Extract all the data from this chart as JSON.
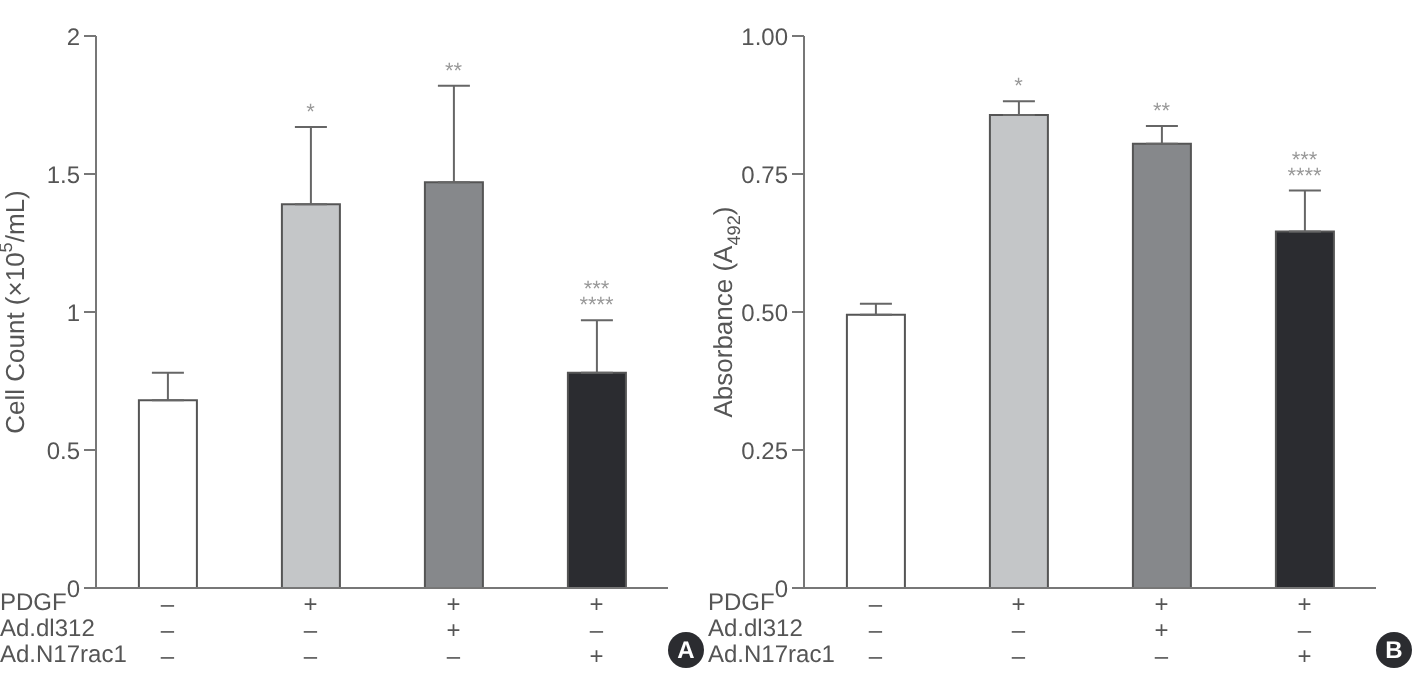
{
  "chart_data": [
    {
      "type": "bar",
      "ylabel": "Cell Count (×10$^{5}$/mL)",
      "categories": [
        "–\n–\n–",
        "+\n–\n–",
        "+\n+\n–",
        "+\n–\n+"
      ],
      "values": [
        0.68,
        1.39,
        1.47,
        0.78
      ],
      "colors": [
        "#ffffff",
        "#c4c6c8",
        "#86888b",
        "#2b2c30"
      ],
      "errors": [
        [
          0.68,
          0.78
        ],
        [
          1.39,
          1.67
        ],
        [
          1.47,
          1.82
        ],
        [
          0.78,
          0.97
        ]
      ],
      "ylim": [
        0,
        2
      ],
      "yticks": [
        0,
        0.5,
        1,
        1.5,
        2
      ],
      "grid": false,
      "legend": false,
      "annotations": [
        "PDGF",
        "Ad.dl312",
        "Ad.N17rac1",
        "A",
        {
          "text": "*",
          "x": "+\n–\n–",
          "y": 1.67
        },
        {
          "text": "**",
          "x": "+\n+\n–",
          "y": 1.82
        },
        {
          "text": "***\n****",
          "x": "+\n–\n+",
          "y": 0.97
        }
      ]
    },
    {
      "type": "bar",
      "ylabel": "Absorbance (A$_{492}$)",
      "categories": [
        "–\n–\n–",
        "+\n–\n–",
        "+\n+\n–",
        "+\n–\n+"
      ],
      "values": [
        0.495,
        0.857,
        0.805,
        0.646
      ],
      "colors": [
        "#ffffff",
        "#c4c6c8",
        "#86888b",
        "#2b2c30"
      ],
      "errors": [
        [
          0.495,
          0.515
        ],
        [
          0.857,
          0.882
        ],
        [
          0.805,
          0.837
        ],
        [
          0.646,
          0.72
        ]
      ],
      "ylim": [
        0,
        1
      ],
      "yticks": [
        0,
        {
          "value": 0.25,
          "label": "0.25"
        },
        {
          "value": 0.5,
          "label": "0.50"
        },
        {
          "value": 0.75,
          "label": "0.75"
        },
        {
          "value": 1,
          "label": "1.00"
        }
      ],
      "grid": false,
      "legend": false,
      "annotations": [
        "PDGF",
        "Ad.dl312",
        "Ad.N17rac1",
        "B",
        {
          "text": "*",
          "x": "+\n–\n–",
          "y": 0.882
        },
        {
          "text": "**",
          "x": "+\n+\n–",
          "y": 0.837
        },
        {
          "text": "***\n****",
          "x": "+\n–\n+",
          "y": 0.72
        }
      ]
    }
  ]
}
